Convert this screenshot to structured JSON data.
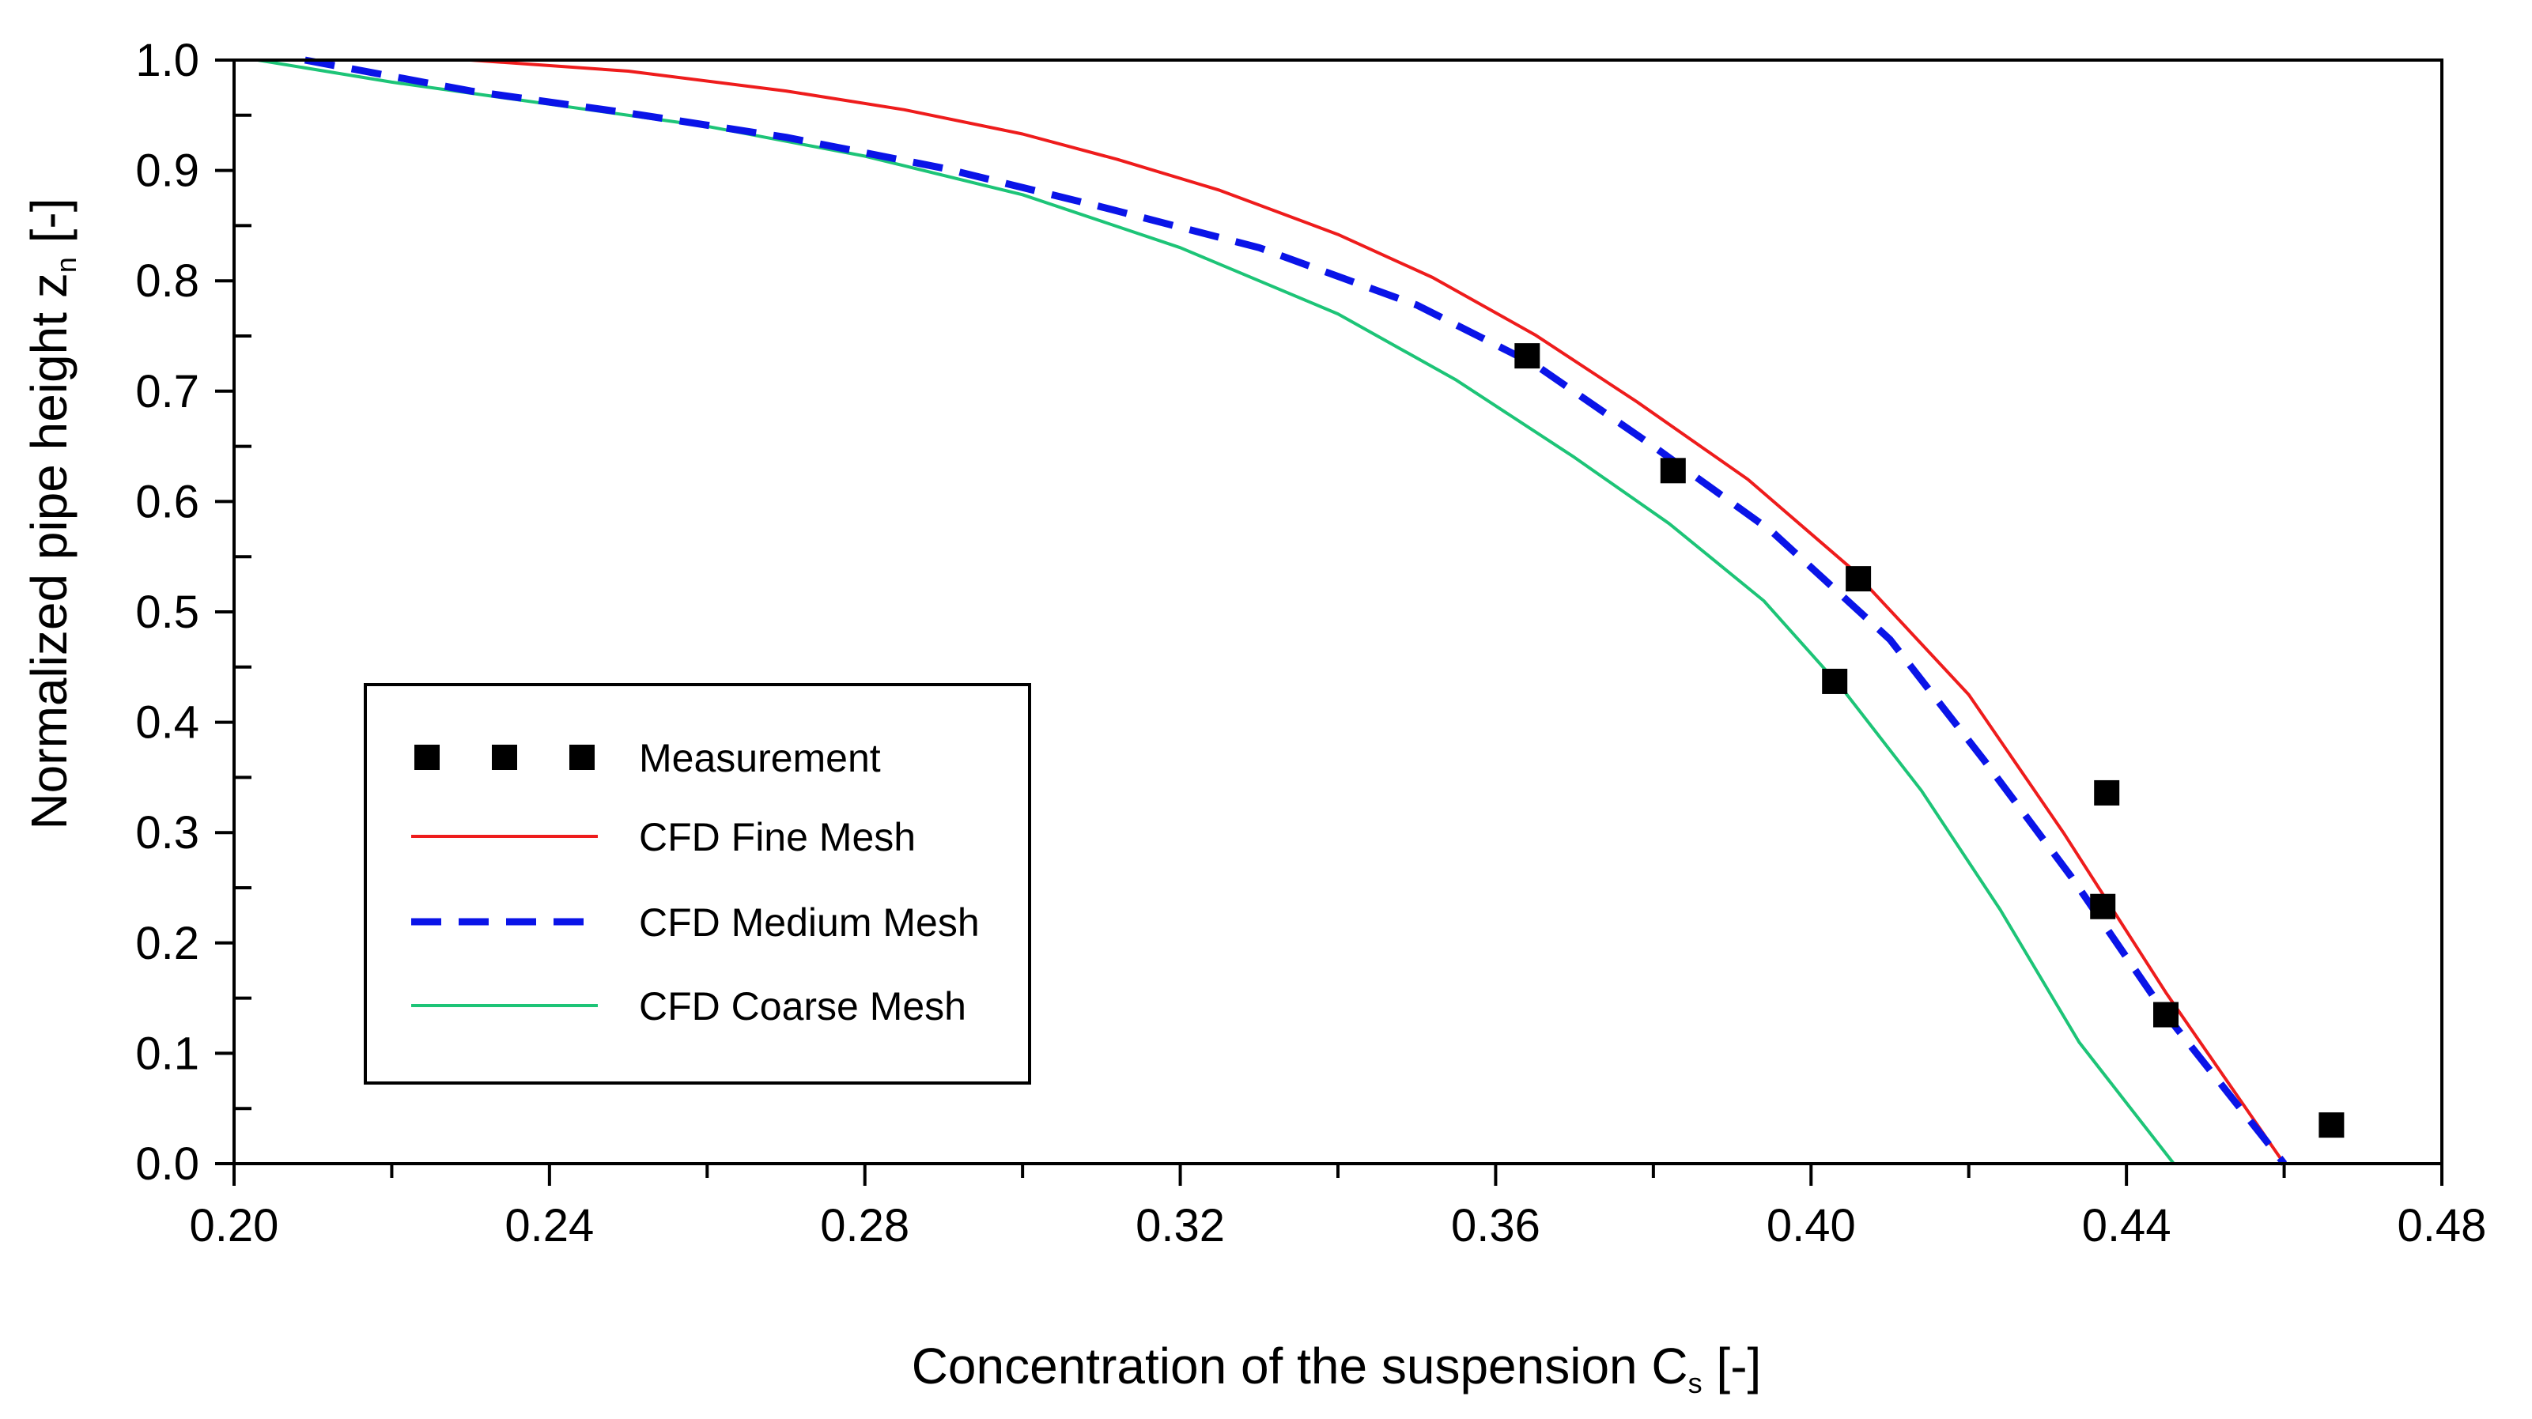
{
  "chart_data": {
    "type": "line",
    "title": "",
    "xlabel": {
      "main": "Concentration of the suspension C",
      "sub": "s",
      "suffix": " [-]"
    },
    "ylabel": {
      "main": "Normalized pipe height z",
      "sub": "n",
      "suffix": " [-]"
    },
    "xlim": [
      0.2,
      0.48
    ],
    "ylim": [
      0.0,
      1.0
    ],
    "xticks": [
      "0.20",
      "0.24",
      "0.28",
      "0.32",
      "0.36",
      "0.40",
      "0.44",
      "0.48"
    ],
    "xtick_values": [
      0.2,
      0.24,
      0.28,
      0.32,
      0.36,
      0.4,
      0.44,
      0.48
    ],
    "yticks": [
      "0.0",
      "0.1",
      "0.2",
      "0.3",
      "0.4",
      "0.5",
      "0.6",
      "0.7",
      "0.8",
      "0.9",
      "1.0"
    ],
    "ytick_values": [
      0.0,
      0.1,
      0.2,
      0.3,
      0.4,
      0.5,
      0.6,
      0.7,
      0.8,
      0.9,
      1.0
    ],
    "legend_position": "lower-left",
    "grid": false,
    "series": [
      {
        "name": "Measurement",
        "kind": "markers",
        "color": "#000000",
        "points": [
          [
            0.364,
            0.732
          ],
          [
            0.3825,
            0.628
          ],
          [
            0.406,
            0.53
          ],
          [
            0.403,
            0.437
          ],
          [
            0.4375,
            0.336
          ],
          [
            0.437,
            0.233
          ],
          [
            0.445,
            0.135
          ],
          [
            0.466,
            0.035
          ]
        ]
      },
      {
        "name": "CFD Fine Mesh",
        "kind": "line",
        "color": "#ee1c1c",
        "dash": "solid",
        "points": [
          [
            0.23,
            1.0
          ],
          [
            0.25,
            0.99
          ],
          [
            0.27,
            0.972
          ],
          [
            0.285,
            0.955
          ],
          [
            0.3,
            0.933
          ],
          [
            0.312,
            0.91
          ],
          [
            0.325,
            0.882
          ],
          [
            0.34,
            0.842
          ],
          [
            0.352,
            0.803
          ],
          [
            0.365,
            0.751
          ],
          [
            0.378,
            0.69
          ],
          [
            0.392,
            0.62
          ],
          [
            0.405,
            0.54
          ],
          [
            0.42,
            0.425
          ],
          [
            0.432,
            0.3
          ],
          [
            0.445,
            0.155
          ],
          [
            0.46,
            0.0
          ]
        ]
      },
      {
        "name": "CFD Medium Mesh",
        "kind": "line",
        "color": "#0a14e8",
        "dash": "dashed",
        "points": [
          [
            0.209,
            1.0
          ],
          [
            0.23,
            0.972
          ],
          [
            0.25,
            0.952
          ],
          [
            0.27,
            0.93
          ],
          [
            0.29,
            0.902
          ],
          [
            0.31,
            0.867
          ],
          [
            0.33,
            0.83
          ],
          [
            0.35,
            0.778
          ],
          [
            0.365,
            0.724
          ],
          [
            0.38,
            0.65
          ],
          [
            0.395,
            0.573
          ],
          [
            0.41,
            0.475
          ],
          [
            0.422,
            0.365
          ],
          [
            0.433,
            0.26
          ],
          [
            0.445,
            0.135
          ],
          [
            0.46,
            0.0
          ]
        ]
      },
      {
        "name": "CFD Coarse Mesh",
        "kind": "line",
        "color": "#1dc477",
        "dash": "solid",
        "points": [
          [
            0.203,
            1.0
          ],
          [
            0.22,
            0.98
          ],
          [
            0.24,
            0.96
          ],
          [
            0.26,
            0.94
          ],
          [
            0.28,
            0.913
          ],
          [
            0.3,
            0.878
          ],
          [
            0.32,
            0.83
          ],
          [
            0.34,
            0.77
          ],
          [
            0.355,
            0.71
          ],
          [
            0.37,
            0.64
          ],
          [
            0.382,
            0.58
          ],
          [
            0.394,
            0.51
          ],
          [
            0.404,
            0.43
          ],
          [
            0.414,
            0.338
          ],
          [
            0.424,
            0.23
          ],
          [
            0.434,
            0.11
          ],
          [
            0.446,
            0.0
          ]
        ]
      }
    ]
  }
}
